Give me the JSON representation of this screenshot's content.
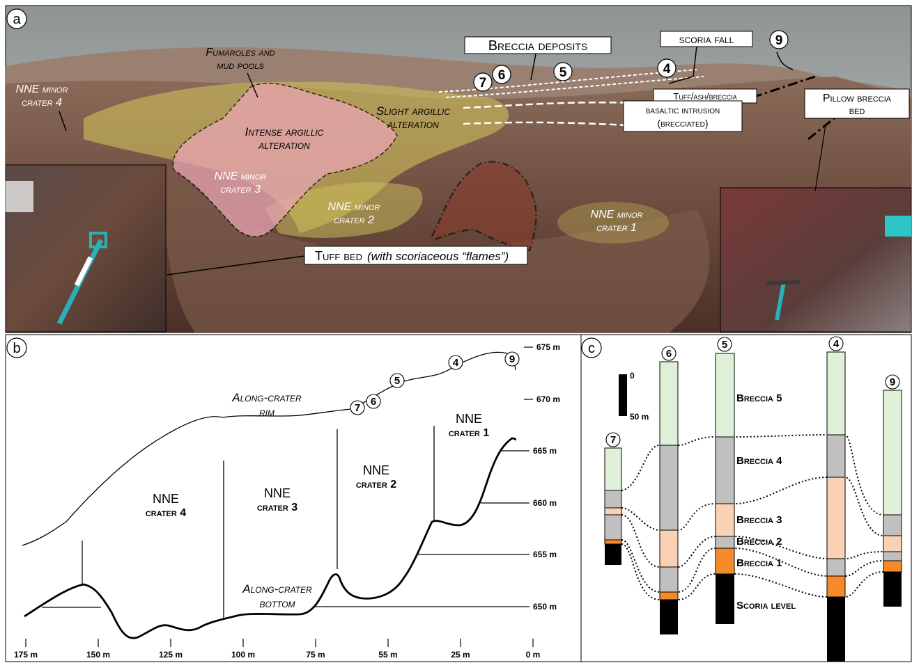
{
  "panels": {
    "a": "a",
    "b": "b",
    "c": "c"
  },
  "photo": {
    "breccia_deposits": "Breccia deposits",
    "scoria_fall": "scoria fall",
    "fumaroles_1": "Fumaroles and",
    "fumaroles_2": "mud pools",
    "slight_1": "Slight argillic",
    "slight_2": "alteration",
    "intense_1": "Intense argillic",
    "intense_2": "alteration",
    "tuff_ash_breccia": "Tuff/ash/breccia",
    "basaltic_1": "basaltic intrusion",
    "basaltic_2": "(brecciated)",
    "pillow_1": "Pillow breccia",
    "pillow_2": "bed",
    "tuff_bed": "Tuff bed",
    "tuff_bed_note": "(with scoriaceous “flames”)",
    "c4_1": "NNE minor",
    "c4_2": "crater 4",
    "c3_1": "NNE minor",
    "c3_2": "crater 3",
    "c2_1": "NNE minor",
    "c2_2": "crater 2",
    "c1_1": "NNE minor",
    "c1_2": "crater 1",
    "sites": [
      "7",
      "6",
      "5",
      "4",
      "9"
    ]
  },
  "profile": {
    "rim_1": "Along-crater",
    "rim_2": "rim",
    "bottom_1": "Along-crater",
    "bottom_2": "bottom",
    "craters": [
      {
        "l1": "NNE",
        "l2": "crater 4"
      },
      {
        "l1": "NNE",
        "l2": "crater 3"
      },
      {
        "l1": "NNE",
        "l2": "crater 2"
      },
      {
        "l1": "NNE",
        "l2": "crater 1"
      }
    ],
    "elev_ticks": [
      "675 m",
      "670 m",
      "665 m",
      "660 m",
      "655 m",
      "650 m"
    ],
    "dist_ticks": [
      "175 m",
      "150 m",
      "125 m",
      "100 m",
      "75 m",
      "55 m",
      "25 m",
      "0 m"
    ],
    "sites": [
      "7",
      "6",
      "5",
      "4",
      "9"
    ]
  },
  "columns": {
    "scale_top": "0",
    "scale_bottom": "50 m",
    "units": [
      "Breccia 5",
      "Breccia 4",
      "Breccia 3",
      "Breccia 2",
      "Breccia 1",
      "Scoria level"
    ],
    "sites": [
      "7",
      "6",
      "5",
      "4",
      "9"
    ],
    "colors": {
      "green": "#dff0d8",
      "grey": "#c0c0c0",
      "peach": "#fbd1b5",
      "orange": "#f68a2a",
      "black": "#000000"
    }
  }
}
